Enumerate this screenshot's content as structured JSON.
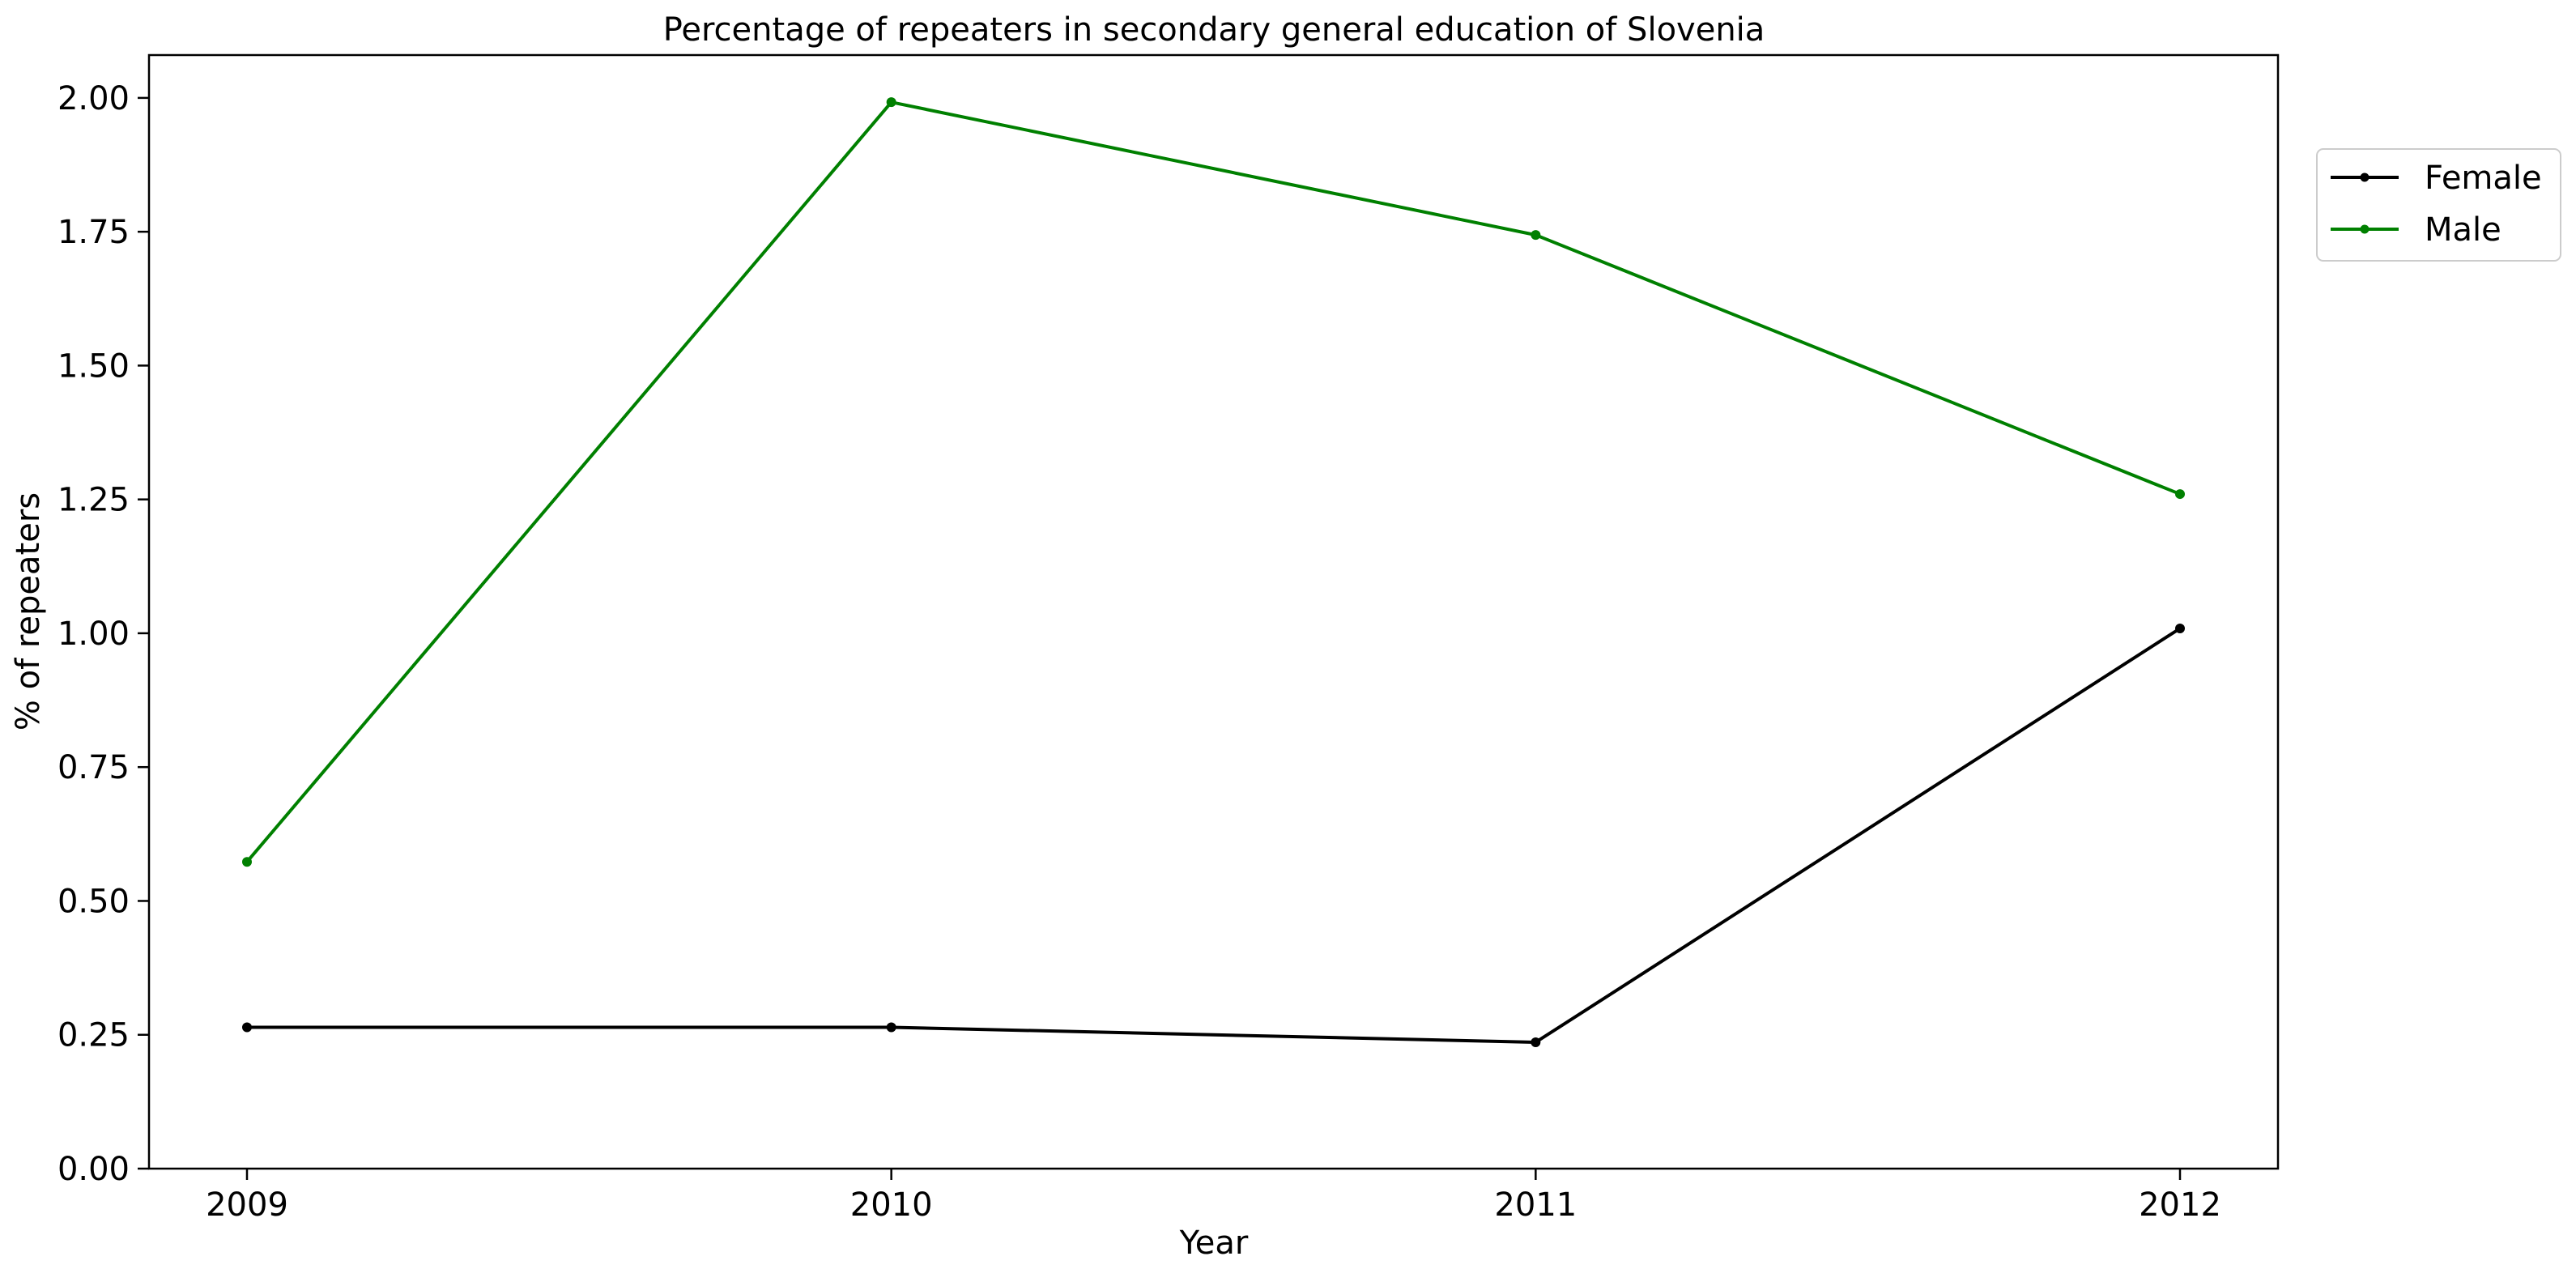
{
  "chart_data": {
    "type": "line",
    "title": "Percentage of repeaters in secondary general education of Slovenia",
    "xlabel": "Year",
    "ylabel": "% of repeaters",
    "categories": [
      "2009",
      "2010",
      "2011",
      "2012"
    ],
    "ylim": [
      0,
      2.08
    ],
    "yticks": [
      "0.00",
      "0.25",
      "0.50",
      "0.75",
      "1.00",
      "1.25",
      "1.50",
      "1.75",
      "2.00"
    ],
    "grid": false,
    "legend_position": "outside-top-right",
    "series": [
      {
        "name": "Female",
        "color": "#000000",
        "values": [
          0.264,
          0.264,
          0.236,
          1.009
        ]
      },
      {
        "name": "Male",
        "color": "#008000",
        "values": [
          0.573,
          1.992,
          1.744,
          1.26
        ]
      }
    ]
  }
}
